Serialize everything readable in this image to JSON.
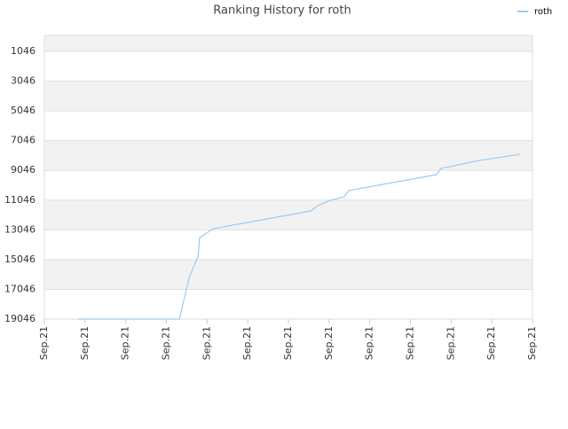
{
  "chart_data": {
    "type": "line",
    "title": "Ranking History for roth",
    "x": [
      0.83,
      3.32,
      3.56,
      3.78,
      3.82,
      4.15,
      6.55,
      6.72,
      7.03,
      7.37,
      7.48,
      9.64,
      9.75,
      10.69,
      11.7
    ],
    "series": [
      {
        "name": "roth",
        "color": "#9fc9ee",
        "values": [
          19046,
          19046,
          16245,
          14815,
          13563,
          12967,
          11775,
          11418,
          11060,
          10822,
          10405,
          9332,
          8915,
          8379,
          7962
        ]
      }
    ],
    "xlim": [
      0,
      12
    ],
    "xticks": [
      {
        "value": 0,
        "label": "Sep.21"
      },
      {
        "value": 1,
        "label": "Sep.21"
      },
      {
        "value": 2,
        "label": "Sep.21"
      },
      {
        "value": 3,
        "label": "Sep.21"
      },
      {
        "value": 4,
        "label": "Sep.21"
      },
      {
        "value": 5,
        "label": "Sep.21"
      },
      {
        "value": 6,
        "label": "Sep.21"
      },
      {
        "value": 7,
        "label": "Sep.21"
      },
      {
        "value": 8,
        "label": "Sep.21"
      },
      {
        "value": 9,
        "label": "Sep.21"
      },
      {
        "value": 10,
        "label": "Sep.21"
      },
      {
        "value": 11,
        "label": "Sep.21"
      },
      {
        "value": 12,
        "label": "Sep.21"
      }
    ],
    "ylim": [
      -27,
      19046
    ],
    "y_inverted": true,
    "yticks": [
      1046,
      3046,
      5046,
      7046,
      9046,
      11046,
      13046,
      15046,
      17046,
      19046
    ],
    "grid": true,
    "legend": "top-right"
  }
}
